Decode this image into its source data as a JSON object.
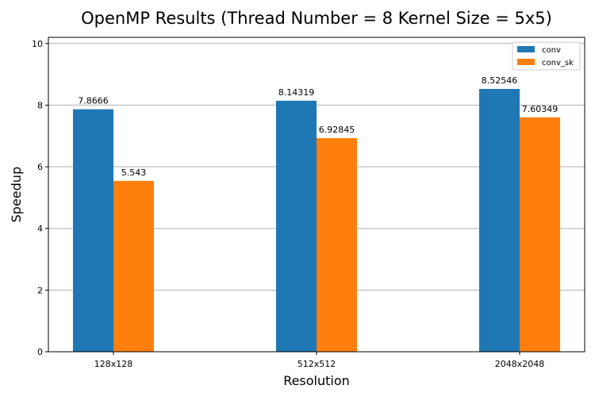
{
  "chart_data": {
    "type": "bar",
    "title": "OpenMP Results (Thread Number = 8 Kernel Size = 5x5)",
    "xlabel": "Resolution",
    "ylabel": "Speedup",
    "categories": [
      "128x128",
      "512x512",
      "2048x2048"
    ],
    "series": [
      {
        "name": "conv",
        "values": [
          7.8666,
          8.14319,
          8.52546
        ],
        "labels": [
          "7.8666",
          "8.14319",
          "8.52546"
        ],
        "color": "#1f77b4"
      },
      {
        "name": "conv_sk",
        "values": [
          5.543,
          6.92845,
          7.60349
        ],
        "labels": [
          "5.543",
          "6.92845",
          "7.60349"
        ],
        "color": "#ff7f0e"
      }
    ],
    "ylim": [
      0,
      10.2
    ],
    "yticks": [
      0,
      2,
      4,
      6,
      8,
      10
    ],
    "ytick_labels": [
      "0",
      "2",
      "4",
      "6",
      "8",
      "10"
    ],
    "grid": "horizontal",
    "legend": "top-right"
  }
}
